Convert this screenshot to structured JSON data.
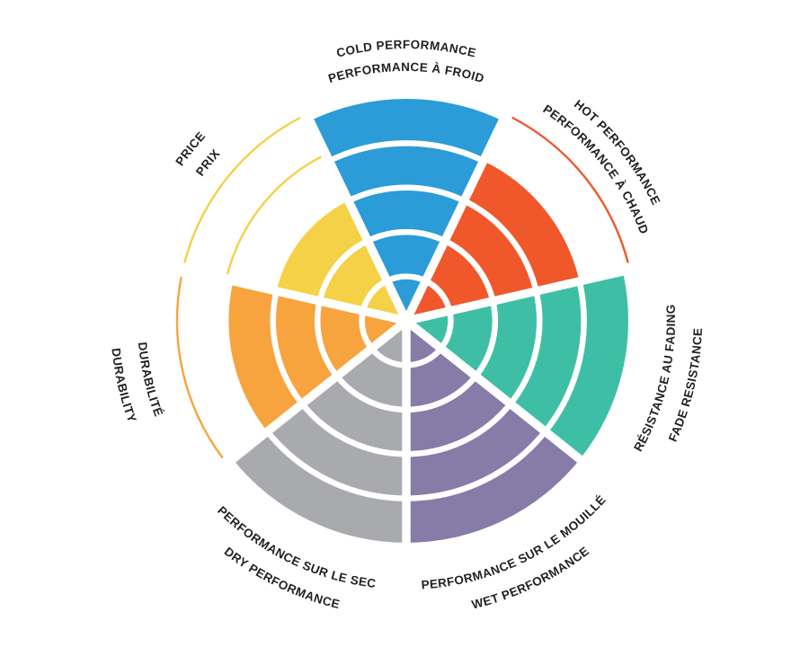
{
  "chart_data": {
    "type": "polar-sector",
    "title": "",
    "levels": 5,
    "start": "top",
    "direction": "clockwise",
    "grid": "white concentric ring lines and radial spokes over filled sectors",
    "legend_position": "labels curved around rim, bilingual",
    "text_color": "#231F20",
    "categories": [
      {
        "id": "cold",
        "label_en": "COLD PERFORMANCE",
        "label_fr": "PERFORMANCE À FROID",
        "value": 5,
        "color": "#2B9CD7"
      },
      {
        "id": "hot",
        "label_en": "HOT PERFORMANCE",
        "label_fr": "PERFORMANCE À CHAUD",
        "value": 4,
        "color": "#F0582B"
      },
      {
        "id": "fade",
        "label_en": "FADE RESISTANCE",
        "label_fr": "RÉSISTANCE AU FADING",
        "value": 5,
        "color": "#3EBFA5"
      },
      {
        "id": "wet",
        "label_en": "WET PERFORMANCE",
        "label_fr": "PERFORMANCE SUR LE MOUILLÉ",
        "value": 5,
        "color": "#867CA7"
      },
      {
        "id": "dry",
        "label_en": "DRY PERFORMANCE",
        "label_fr": "PERFORMANCE SUR LE SEC",
        "value": 5,
        "color": "#A9AAAD"
      },
      {
        "id": "durability",
        "label_en": "DURABILITY",
        "label_fr": "DURABILITÉ",
        "value": 4,
        "color": "#F7A43E"
      },
      {
        "id": "price",
        "label_en": "PRICE",
        "label_fr": "PRIX",
        "value": 3,
        "color": "#F4D146"
      }
    ]
  }
}
